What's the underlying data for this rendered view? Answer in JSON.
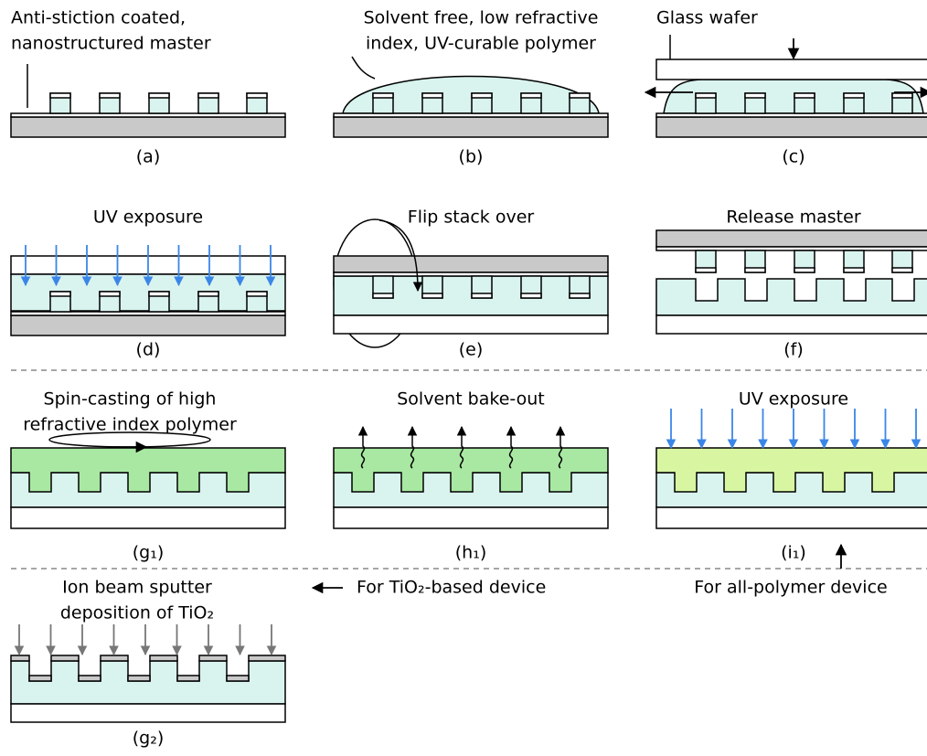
{
  "panels": [
    {
      "caption": "(a)",
      "label": [
        "Anti-stiction coated,",
        "nanostructured master"
      ]
    },
    {
      "caption": "(b)",
      "label": [
        "Solvent free, low refractive",
        "index, UV-curable polymer"
      ]
    },
    {
      "caption": "(c)",
      "label": [
        "Glass wafer"
      ]
    },
    {
      "caption": "(d)",
      "label": [
        "UV exposure"
      ]
    },
    {
      "caption": "(e)",
      "label": [
        "Flip stack over"
      ]
    },
    {
      "caption": "(f)",
      "label": [
        "Release master"
      ]
    },
    {
      "caption": "(g₁)",
      "label": [
        "Spin-casting of high",
        "refractive index polymer"
      ]
    },
    {
      "caption": "(h₁)",
      "label": [
        "Solvent bake-out"
      ]
    },
    {
      "caption": "(i₁)",
      "label": [
        "UV exposure"
      ]
    },
    {
      "caption": "(g₂)",
      "label": [
        "Ion beam sputter",
        "deposition of TiO₂"
      ]
    }
  ],
  "notes": {
    "tio2": "For TiO₂-based device",
    "polymer": "For all-polymer device"
  }
}
